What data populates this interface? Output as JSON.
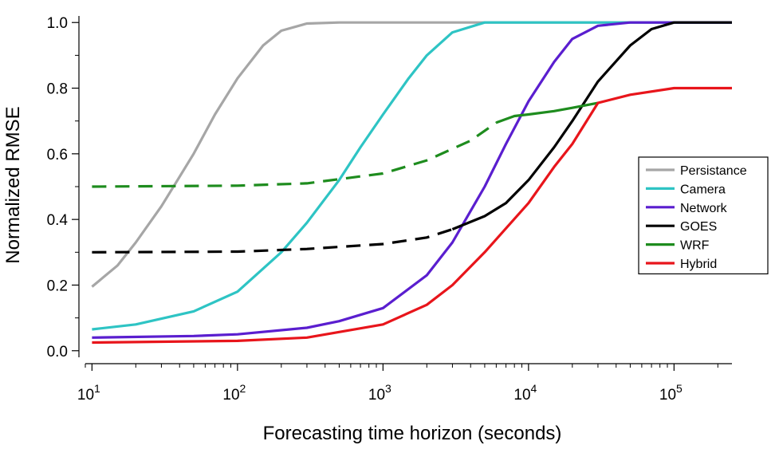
{
  "chart_data": {
    "type": "line",
    "title": "",
    "xlabel": "Forecasting time horizon (seconds)",
    "ylabel": "Normalized RMSE",
    "xscale": "log",
    "xlim": [
      9,
      250000
    ],
    "ylim": [
      -0.02,
      1.02
    ],
    "grid": false,
    "legend_position": "right",
    "xticks": [
      {
        "value": 10,
        "base": "10",
        "exp": "1"
      },
      {
        "value": 100,
        "base": "10",
        "exp": "2"
      },
      {
        "value": 1000,
        "base": "10",
        "exp": "3"
      },
      {
        "value": 10000,
        "base": "10",
        "exp": "4"
      },
      {
        "value": 100000,
        "base": "10",
        "exp": "5"
      }
    ],
    "yticks": [
      {
        "value": 0.0,
        "label": "0.0"
      },
      {
        "value": 0.2,
        "label": "0.2"
      },
      {
        "value": 0.4,
        "label": "0.4"
      },
      {
        "value": 0.6,
        "label": "0.6"
      },
      {
        "value": 0.8,
        "label": "0.8"
      },
      {
        "value": 1.0,
        "label": "1.0"
      }
    ],
    "series": [
      {
        "name": "Persistance",
        "color": "#a6a6a6",
        "segments": [
          {
            "style": "solid",
            "points": [
              [
                10,
                0.195
              ],
              [
                15,
                0.26
              ],
              [
                20,
                0.33
              ],
              [
                30,
                0.44
              ],
              [
                40,
                0.53
              ],
              [
                50,
                0.6
              ],
              [
                70,
                0.72
              ],
              [
                100,
                0.83
              ],
              [
                150,
                0.93
              ],
              [
                200,
                0.975
              ],
              [
                300,
                0.997
              ],
              [
                500,
                1.0
              ],
              [
                250000,
                1.0
              ]
            ]
          }
        ]
      },
      {
        "name": "Camera",
        "color": "#2ec4c4",
        "segments": [
          {
            "style": "solid",
            "points": [
              [
                10,
                0.065
              ],
              [
                20,
                0.08
              ],
              [
                50,
                0.12
              ],
              [
                100,
                0.18
              ],
              [
                200,
                0.3
              ],
              [
                300,
                0.39
              ],
              [
                500,
                0.52
              ],
              [
                700,
                0.62
              ],
              [
                1000,
                0.72
              ],
              [
                1500,
                0.83
              ],
              [
                2000,
                0.9
              ],
              [
                3000,
                0.97
              ],
              [
                5000,
                1.0
              ],
              [
                250000,
                1.0
              ]
            ]
          }
        ]
      },
      {
        "name": "Network",
        "color": "#5a1ecf",
        "segments": [
          {
            "style": "solid",
            "points": [
              [
                10,
                0.04
              ],
              [
                50,
                0.045
              ],
              [
                100,
                0.05
              ],
              [
                300,
                0.07
              ],
              [
                500,
                0.09
              ],
              [
                1000,
                0.13
              ],
              [
                2000,
                0.23
              ],
              [
                3000,
                0.33
              ],
              [
                5000,
                0.5
              ],
              [
                7000,
                0.63
              ],
              [
                10000,
                0.76
              ],
              [
                15000,
                0.88
              ],
              [
                20000,
                0.95
              ],
              [
                30000,
                0.99
              ],
              [
                50000,
                1.0
              ],
              [
                250000,
                1.0
              ]
            ]
          }
        ]
      },
      {
        "name": "GOES",
        "color": "#000000",
        "segments": [
          {
            "style": "dashed",
            "points": [
              [
                10,
                0.3
              ],
              [
                100,
                0.302
              ],
              [
                300,
                0.31
              ],
              [
                1000,
                0.325
              ],
              [
                2000,
                0.345
              ],
              [
                3000,
                0.37
              ]
            ]
          },
          {
            "style": "solid",
            "points": [
              [
                3000,
                0.37
              ],
              [
                5000,
                0.41
              ],
              [
                7000,
                0.45
              ],
              [
                10000,
                0.52
              ],
              [
                15000,
                0.62
              ],
              [
                20000,
                0.7
              ],
              [
                30000,
                0.82
              ],
              [
                50000,
                0.93
              ],
              [
                70000,
                0.98
              ],
              [
                100000,
                1.0
              ],
              [
                250000,
                1.0
              ]
            ]
          }
        ]
      },
      {
        "name": "WRF",
        "color": "#1e8c1e",
        "segments": [
          {
            "style": "dashed",
            "points": [
              [
                10,
                0.5
              ],
              [
                100,
                0.503
              ],
              [
                300,
                0.51
              ],
              [
                1000,
                0.54
              ],
              [
                2000,
                0.58
              ],
              [
                4000,
                0.64
              ],
              [
                6000,
                0.695
              ]
            ]
          },
          {
            "style": "solid",
            "points": [
              [
                6000,
                0.695
              ],
              [
                8000,
                0.715
              ],
              [
                10000,
                0.72
              ],
              [
                15000,
                0.73
              ],
              [
                20000,
                0.74
              ],
              [
                30000,
                0.755
              ]
            ]
          }
        ]
      },
      {
        "name": "Hybrid",
        "color": "#e8151b",
        "segments": [
          {
            "style": "solid",
            "points": [
              [
                10,
                0.025
              ],
              [
                100,
                0.03
              ],
              [
                300,
                0.04
              ],
              [
                1000,
                0.08
              ],
              [
                2000,
                0.14
              ],
              [
                3000,
                0.2
              ],
              [
                5000,
                0.3
              ],
              [
                10000,
                0.45
              ],
              [
                15000,
                0.56
              ],
              [
                20000,
                0.63
              ],
              [
                30000,
                0.755
              ],
              [
                50000,
                0.78
              ],
              [
                100000,
                0.8
              ],
              [
                250000,
                0.8
              ]
            ]
          }
        ]
      }
    ]
  }
}
